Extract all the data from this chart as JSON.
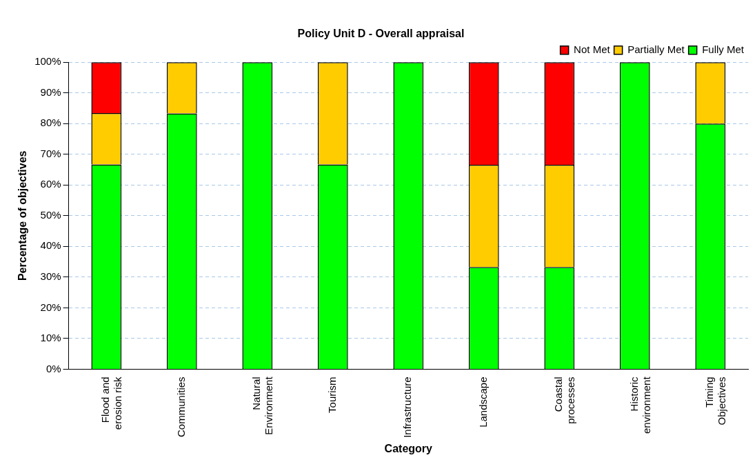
{
  "chart_data": {
    "type": "bar",
    "title": "Policy Unit D - Overall appraisal",
    "xlabel": "Category",
    "ylabel": "Percentage of objectives",
    "categories": [
      "Flood and erosion risk",
      "Communities",
      "Natural Environment",
      "Tourism",
      "Infrastructure",
      "Landscape",
      "Coastal processes",
      "Historic environment",
      "Timing Objectives"
    ],
    "series": [
      {
        "name": "Fully Met",
        "color": "#00ff00",
        "values": [
          66.7,
          83.3,
          100,
          66.7,
          100,
          33.3,
          33.3,
          100,
          80
        ]
      },
      {
        "name": "Partially Met",
        "color": "#ffcc00",
        "values": [
          16.7,
          16.7,
          0,
          33.3,
          0,
          33.3,
          33.3,
          0,
          20
        ]
      },
      {
        "name": "Not Met",
        "color": "#ff0000",
        "values": [
          16.6,
          0,
          0,
          0,
          0,
          33.4,
          33.4,
          0,
          0
        ]
      }
    ],
    "stacked": true,
    "ylim": [
      0,
      100
    ],
    "yticks": [
      {
        "value": 0,
        "label": "0%"
      },
      {
        "value": 10,
        "label": "10%"
      },
      {
        "value": 20,
        "label": "20%"
      },
      {
        "value": 30,
        "label": "30%"
      },
      {
        "value": 40,
        "label": "40%"
      },
      {
        "value": 50,
        "label": "50%"
      },
      {
        "value": 60,
        "label": "60%"
      },
      {
        "value": 70,
        "label": "70%"
      },
      {
        "value": 80,
        "label": "80%"
      },
      {
        "value": 90,
        "label": "90%"
      },
      {
        "value": 100,
        "label": "100%"
      }
    ],
    "grid": "y",
    "legend": "top right"
  }
}
